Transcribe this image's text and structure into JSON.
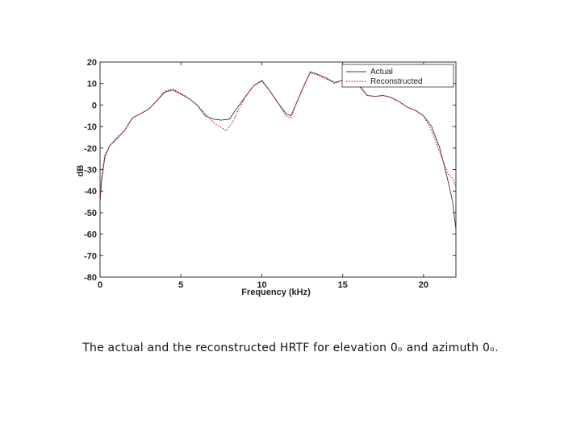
{
  "caption": "The actual and the reconstructed HRTF for elevation 0ₒ and azimuth 0ₒ.",
  "colors": {
    "actual": "#3a3a4a",
    "reconstructed": "#cc2222",
    "axes": "#333333"
  },
  "chart_data": {
    "type": "line",
    "title": "",
    "xlabel": "Frequency (kHz)",
    "ylabel": "dB",
    "xlim": [
      0,
      22
    ],
    "ylim": [
      -80,
      20
    ],
    "xticks": [
      0,
      5,
      10,
      15,
      20
    ],
    "yticks": [
      20,
      10,
      0,
      -10,
      -20,
      -30,
      -40,
      -50,
      -60,
      -70,
      -80
    ],
    "grid": false,
    "legend": {
      "placement": "top-right",
      "entries": [
        "Actual",
        "Reconstructed"
      ]
    },
    "series": [
      {
        "name": "Actual",
        "style": "solid",
        "x": [
          0,
          0.1,
          0.3,
          0.6,
          1.0,
          1.5,
          2.0,
          2.5,
          3.0,
          3.5,
          4.0,
          4.5,
          5.0,
          5.5,
          6.0,
          6.5,
          7.0,
          7.5,
          8.0,
          8.5,
          9.0,
          9.5,
          10.0,
          10.5,
          11.0,
          11.5,
          11.8,
          12.2,
          12.6,
          13.0,
          13.4,
          14.0,
          14.5,
          15.0,
          15.5,
          16.0,
          16.5,
          17.0,
          17.5,
          18.0,
          18.5,
          19.0,
          19.5,
          20.0,
          20.5,
          21.0,
          21.5,
          21.8,
          22.0
        ],
        "y": [
          -45,
          -35,
          -24,
          -19,
          -16,
          -12,
          -6,
          -4,
          -2,
          2,
          6,
          7,
          5,
          3,
          0,
          -5,
          -6.5,
          -7,
          -6.5,
          -1,
          4,
          9,
          11.5,
          6.5,
          1,
          -4,
          -5,
          2,
          9,
          15.5,
          14.5,
          12.5,
          10.5,
          11.5,
          11,
          9.5,
          4.5,
          4,
          4.5,
          3.5,
          1.5,
          -1,
          -2.5,
          -5,
          -10,
          -20,
          -35,
          -45,
          -58
        ]
      },
      {
        "name": "Reconstructed",
        "style": "dotted",
        "x": [
          0,
          0.1,
          0.3,
          0.6,
          1.0,
          1.5,
          2.0,
          2.5,
          3.0,
          3.5,
          4.0,
          4.5,
          5.0,
          5.5,
          6.0,
          6.5,
          7.0,
          7.5,
          7.8,
          8.2,
          8.5,
          9.0,
          9.5,
          10.0,
          10.5,
          11.0,
          11.5,
          11.8,
          12.2,
          12.6,
          13.0,
          13.4,
          14.0,
          14.5,
          15.0,
          15.5,
          16.0,
          16.5,
          17.0,
          17.5,
          18.0,
          18.5,
          19.0,
          19.5,
          20.0,
          20.5,
          21.0,
          21.5,
          21.8,
          22.0
        ],
        "y": [
          -42,
          -33,
          -23,
          -19,
          -15.5,
          -12,
          -6,
          -4,
          -2,
          2,
          6.5,
          7.5,
          5.5,
          3,
          0,
          -4,
          -8,
          -10.5,
          -12,
          -8,
          -3,
          4,
          9,
          11,
          6.5,
          1,
          -5,
          -6,
          2,
          9,
          15,
          14,
          12,
          10,
          11.5,
          11,
          9,
          4.5,
          4,
          4.5,
          3.5,
          1.5,
          -1,
          -2.5,
          -5,
          -12,
          -22,
          -32,
          -34,
          -38
        ]
      }
    ]
  }
}
